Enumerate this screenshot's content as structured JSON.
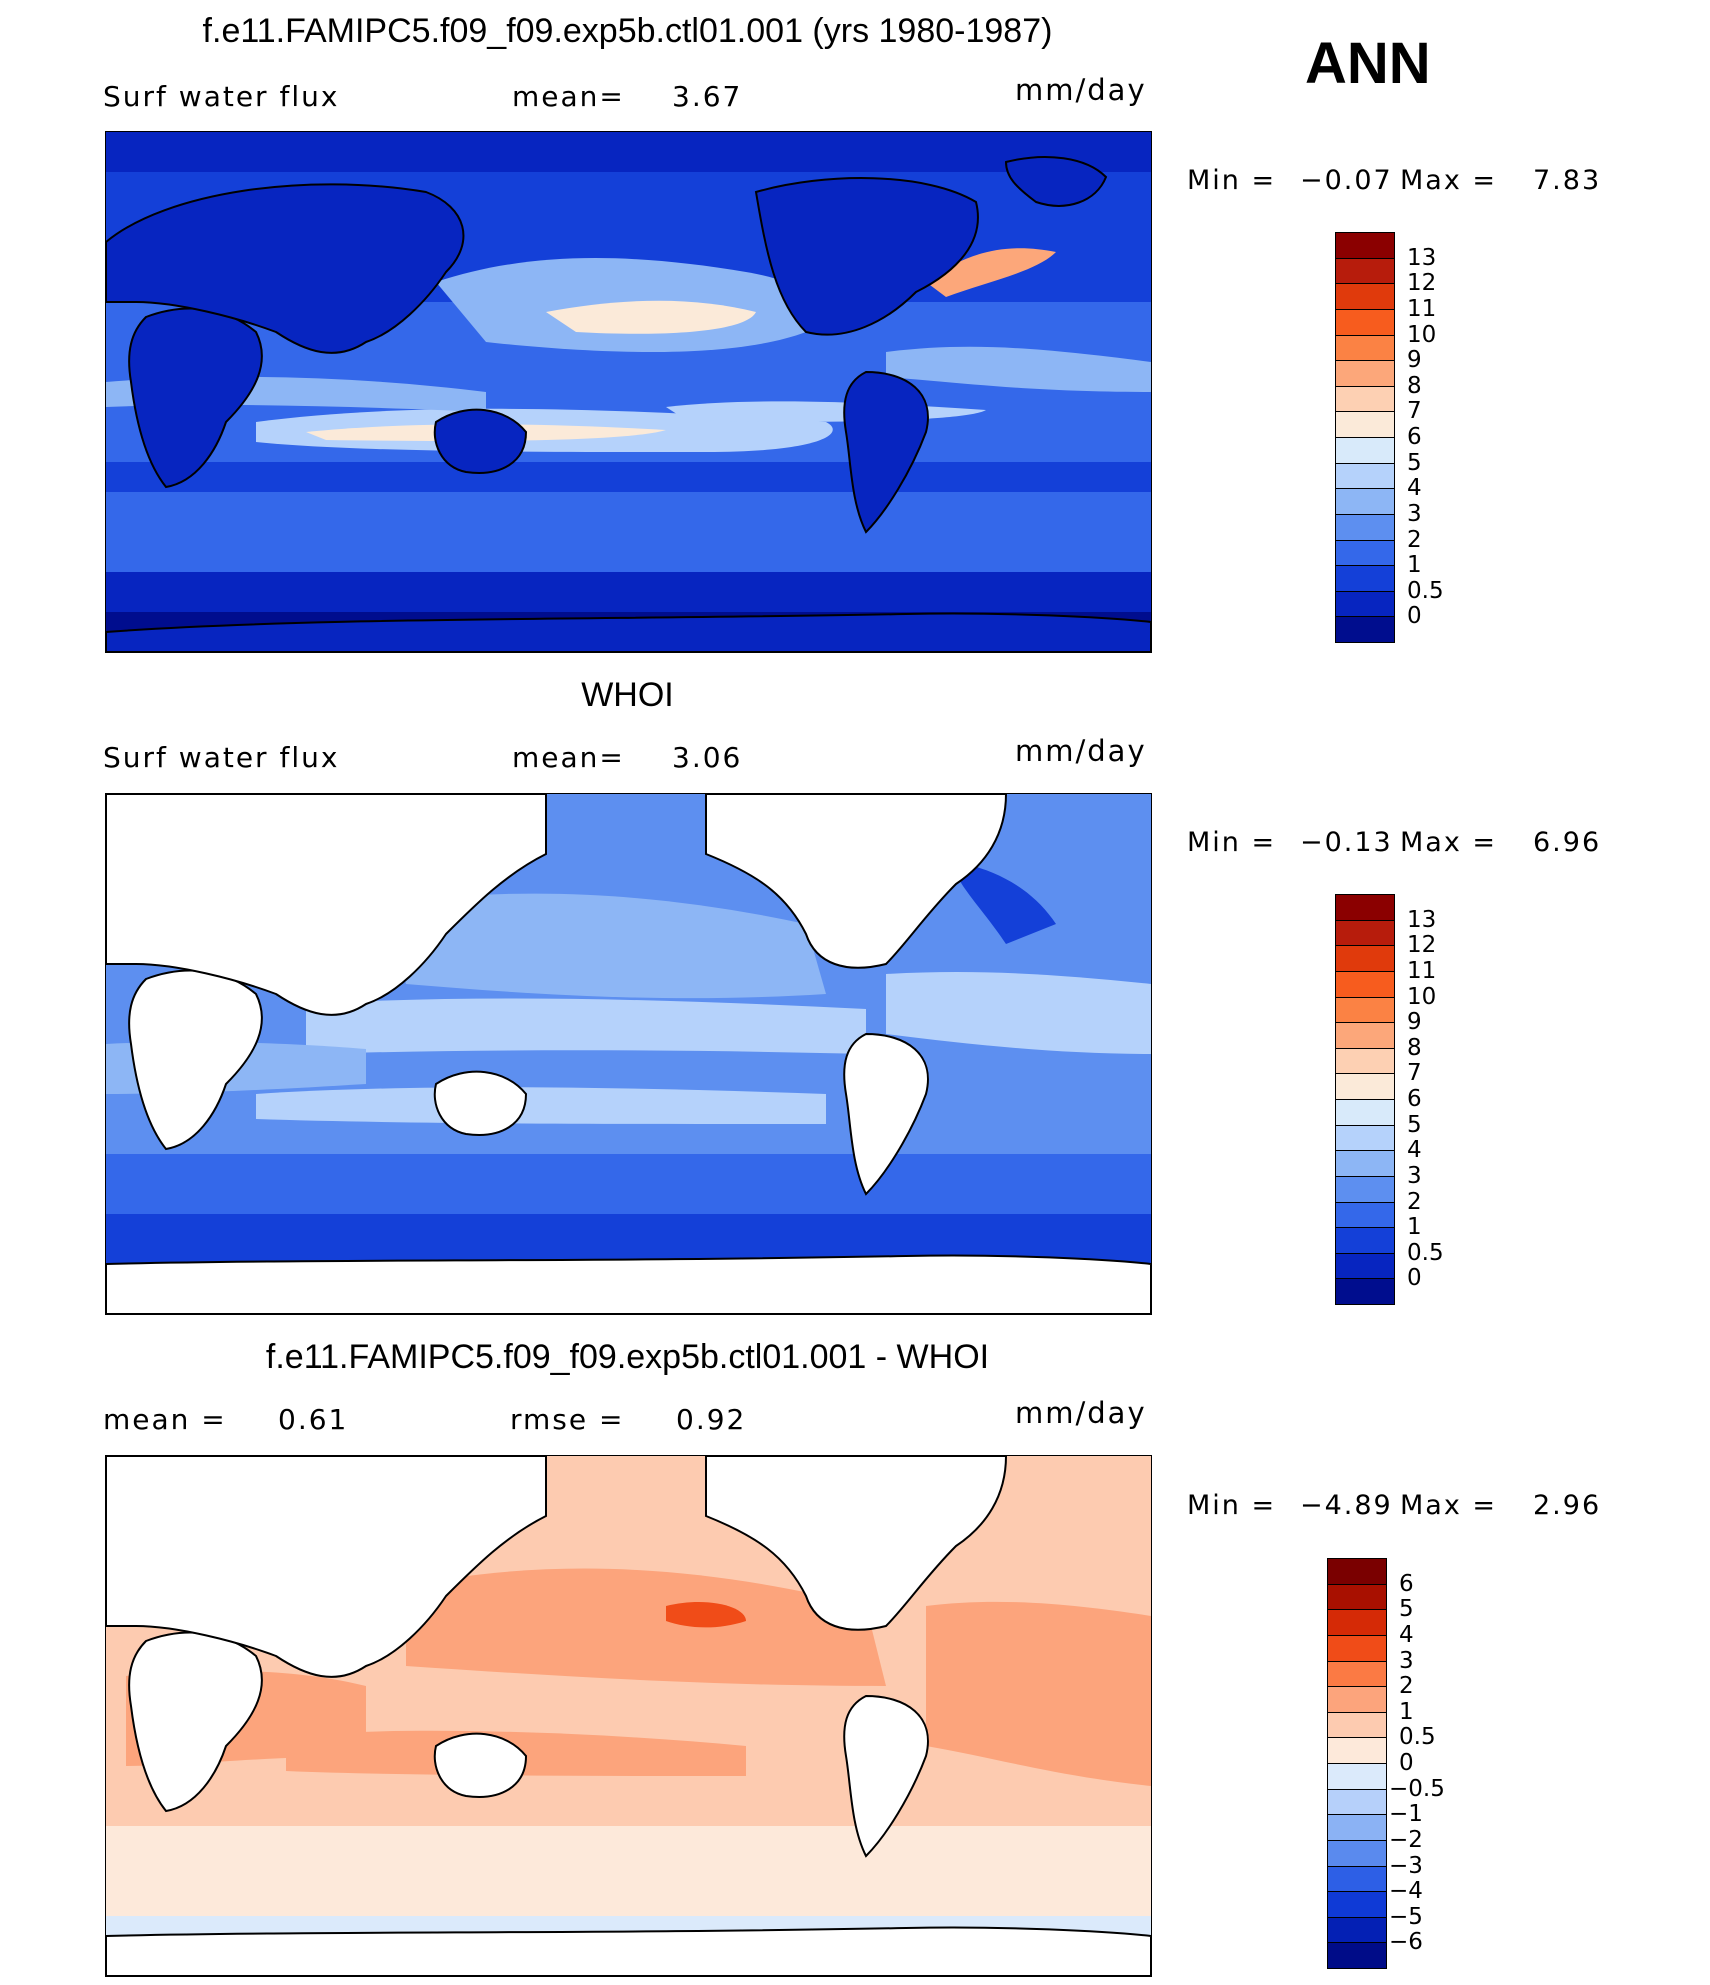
{
  "season_label": "ANN",
  "panels": [
    {
      "title": "f.e11.FAMIPC5.f09_f09.exp5b.ctl01.001 (yrs 1980-1987)",
      "left_label": "Surf water flux",
      "mid_label": "mean=",
      "mid_value": "3.67",
      "units": "mm/day",
      "min_label": "Min =",
      "min_value": "−0.07",
      "max_label": "Max =",
      "max_value": "7.83",
      "palette": "model",
      "colorbar_labels": [
        "13",
        "12",
        "11",
        "10",
        "9",
        "8",
        "7",
        "6",
        "5",
        "4",
        "3",
        "2",
        "1",
        "0.5",
        "0"
      ],
      "colorbar_colors": [
        "#8b0000",
        "#b71c0c",
        "#e03a0c",
        "#f75c1e",
        "#fb8244",
        "#fca77a",
        "#fdd0b3",
        "#fbead9",
        "#d8eafa",
        "#b5d2fb",
        "#8db6f5",
        "#5d8ff0",
        "#3468ea",
        "#1440d8",
        "#0725c0",
        "#000d8e"
      ],
      "land_masked": false
    },
    {
      "title": "WHOI",
      "left_label": "Surf water flux",
      "mid_label": "mean=",
      "mid_value": "3.06",
      "units": "mm/day",
      "min_label": "Min =",
      "min_value": "−0.13",
      "max_label": "Max =",
      "max_value": "6.96",
      "palette": "model",
      "colorbar_labels": [
        "13",
        "12",
        "11",
        "10",
        "9",
        "8",
        "7",
        "6",
        "5",
        "4",
        "3",
        "2",
        "1",
        "0.5",
        "0"
      ],
      "colorbar_colors": [
        "#8b0000",
        "#b71c0c",
        "#e03a0c",
        "#f75c1e",
        "#fb8244",
        "#fca77a",
        "#fdd0b3",
        "#fbead9",
        "#d8eafa",
        "#b5d2fb",
        "#8db6f5",
        "#5d8ff0",
        "#3468ea",
        "#1440d8",
        "#0725c0",
        "#000d8e"
      ],
      "land_masked": true
    },
    {
      "title": "f.e11.FAMIPC5.f09_f09.exp5b.ctl01.001 - WHOI",
      "left_label": "mean =",
      "left_value": "0.61",
      "mid_label": "rmse =",
      "mid_value": "0.92",
      "units": "mm/day",
      "min_label": "Min =",
      "min_value": "−4.89",
      "max_label": "Max =",
      "max_value": "2.96",
      "palette": "diff",
      "colorbar_labels": [
        "6",
        "5",
        "4",
        "3",
        "2",
        "1",
        "0.5",
        "0",
        "−0.5",
        "−1",
        "−2",
        "−3",
        "−4",
        "−5",
        "−6"
      ],
      "colorbar_colors": [
        "#7a0000",
        "#a81000",
        "#d52a06",
        "#f04c18",
        "#fb7a44",
        "#fca47c",
        "#fdcbb0",
        "#fde9da",
        "#dbeafb",
        "#b6d0fa",
        "#8bb2f4",
        "#5a8aee",
        "#2d5fe6",
        "#0f3ad6",
        "#0420b4",
        "#000c88"
      ],
      "land_masked": true
    }
  ]
}
